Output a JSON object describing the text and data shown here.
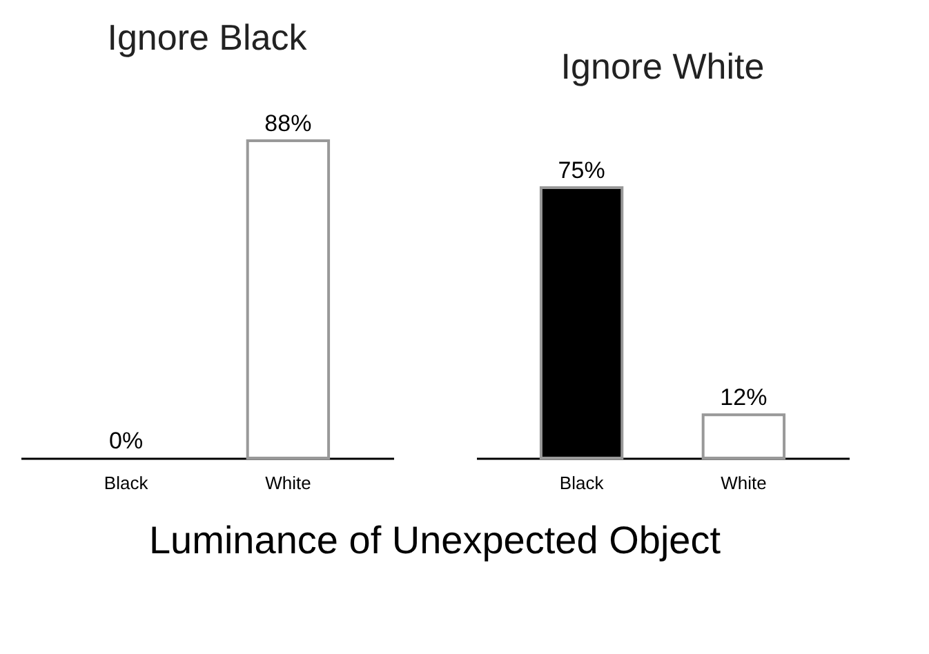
{
  "chart_data": [
    {
      "type": "bar",
      "title": "Ignore  Black",
      "xlabel": "Luminance of Unexpected Object",
      "categories": [
        "Black",
        "White"
      ],
      "values": [
        0,
        88
      ],
      "colors": [
        "#000000",
        "#ffffff"
      ],
      "value_labels": [
        "0%",
        "88%"
      ]
    },
    {
      "type": "bar",
      "title": "Ignore  White",
      "categories": [
        "Black",
        "White"
      ],
      "values": [
        75,
        12
      ],
      "colors": [
        "#000000",
        "#ffffff"
      ],
      "value_labels": [
        "75%",
        "12%"
      ]
    }
  ]
}
